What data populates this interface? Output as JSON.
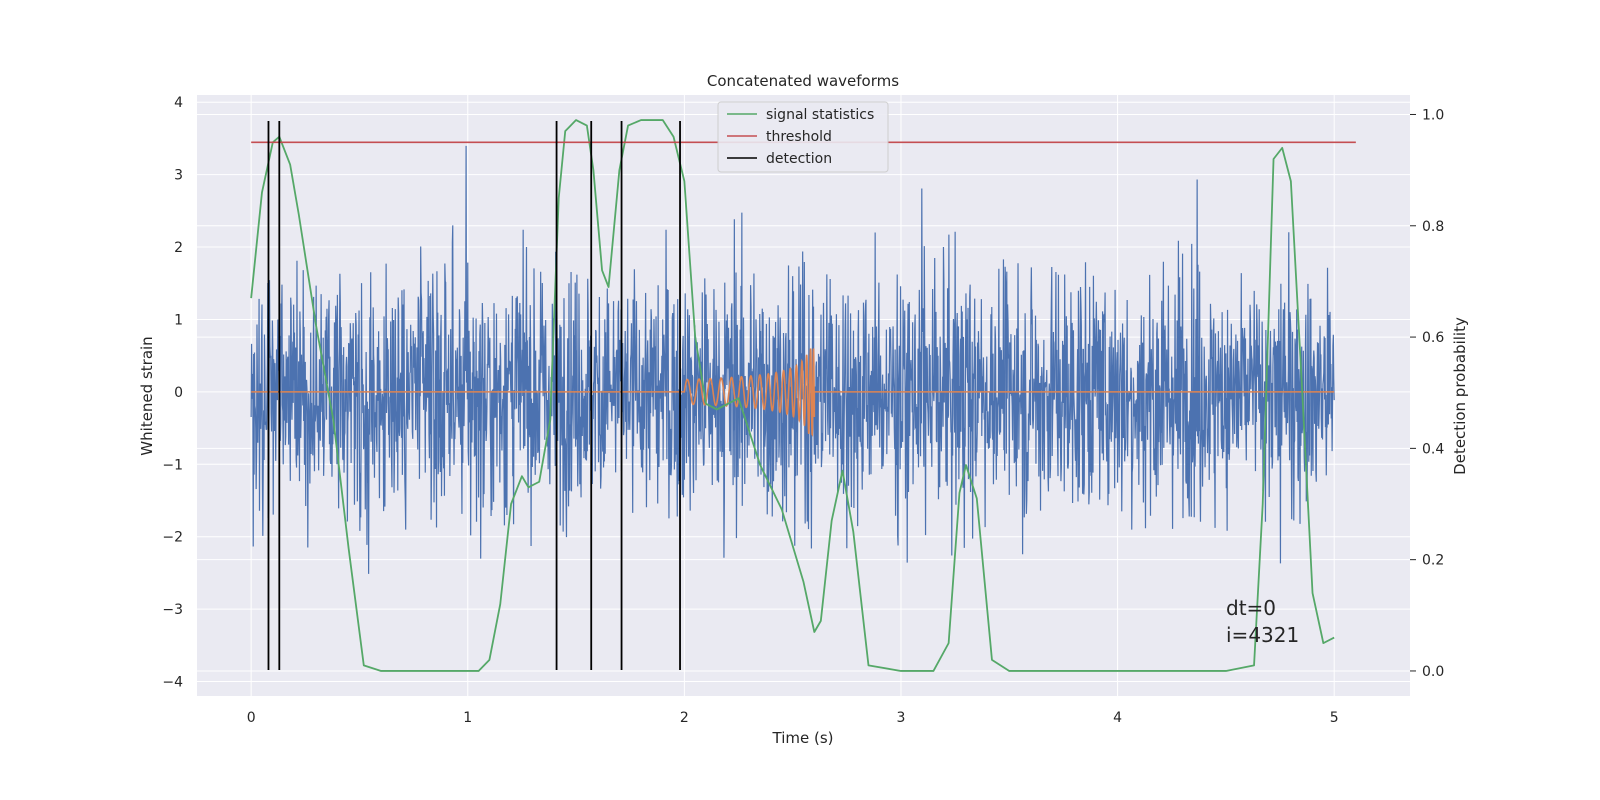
{
  "chart_data": {
    "type": "line",
    "title": "Concatenated waveforms",
    "xlabel": "Time (s)",
    "ylabel": "Whitened strain",
    "y2label": "Detection probability",
    "xlim": [
      -0.25,
      5.35
    ],
    "ylim": [
      -4.2,
      4.1
    ],
    "y2lim": [
      -0.045,
      1.035
    ],
    "x_ticks": [
      "0",
      "1",
      "2",
      "3",
      "4",
      "5"
    ],
    "y_ticks": [
      "−4",
      "−3",
      "−2",
      "−1",
      "0",
      "1",
      "2",
      "3",
      "4"
    ],
    "y2_ticks": [
      "0.0",
      "0.2",
      "0.4",
      "0.6",
      "0.8",
      "1.0"
    ],
    "grid": true,
    "legend_position": "top-center",
    "legend": [
      "signal statistics",
      "threshold",
      "detection"
    ],
    "colors": {
      "noise": "#4c72b0",
      "injection": "#dd8452",
      "statistic": "#55a868",
      "threshold": "#c44e52",
      "detection": "#000000",
      "background": "#eaeaf2"
    },
    "annotations": [
      "dt=0",
      "i=4321"
    ],
    "series": [
      {
        "name": "signal statistics",
        "axis": "right",
        "x": [
          0,
          0.05,
          0.1,
          0.13,
          0.18,
          0.22,
          0.3,
          0.38,
          0.45,
          0.52,
          0.6,
          0.9,
          1.05,
          1.1,
          1.15,
          1.2,
          1.25,
          1.28,
          1.33,
          1.38,
          1.42,
          1.45,
          1.5,
          1.55,
          1.58,
          1.62,
          1.65,
          1.7,
          1.74,
          1.8,
          1.9,
          1.95,
          2.0,
          2.05,
          2.1,
          2.15,
          2.25,
          2.35,
          2.45,
          2.55,
          2.6,
          2.63,
          2.68,
          2.73,
          2.78,
          2.85,
          3.0,
          3.15,
          3.22,
          3.27,
          3.3,
          3.35,
          3.42,
          3.5,
          3.8,
          4.2,
          4.5,
          4.63,
          4.67,
          4.72,
          4.76,
          4.8,
          4.85,
          4.9,
          4.95,
          5.0
        ],
        "y": [
          0.67,
          0.86,
          0.95,
          0.96,
          0.91,
          0.82,
          0.62,
          0.45,
          0.22,
          0.01,
          0.0,
          0.0,
          0.0,
          0.02,
          0.12,
          0.3,
          0.35,
          0.33,
          0.34,
          0.45,
          0.85,
          0.97,
          0.99,
          0.98,
          0.9,
          0.72,
          0.69,
          0.9,
          0.98,
          0.99,
          0.99,
          0.96,
          0.88,
          0.6,
          0.48,
          0.47,
          0.49,
          0.37,
          0.29,
          0.16,
          0.07,
          0.09,
          0.27,
          0.36,
          0.25,
          0.01,
          0.0,
          0.0,
          0.05,
          0.32,
          0.37,
          0.31,
          0.02,
          0.0,
          0.0,
          0.0,
          0.0,
          0.01,
          0.3,
          0.92,
          0.94,
          0.88,
          0.52,
          0.14,
          0.05,
          0.06
        ]
      },
      {
        "name": "threshold",
        "axis": "right",
        "x": [
          0,
          5.1
        ],
        "y": [
          0.95,
          0.95
        ]
      },
      {
        "name": "detection",
        "axis": "left",
        "x": [
          0.08,
          0.13,
          1.41,
          1.57,
          1.71,
          1.98
        ]
      }
    ]
  }
}
